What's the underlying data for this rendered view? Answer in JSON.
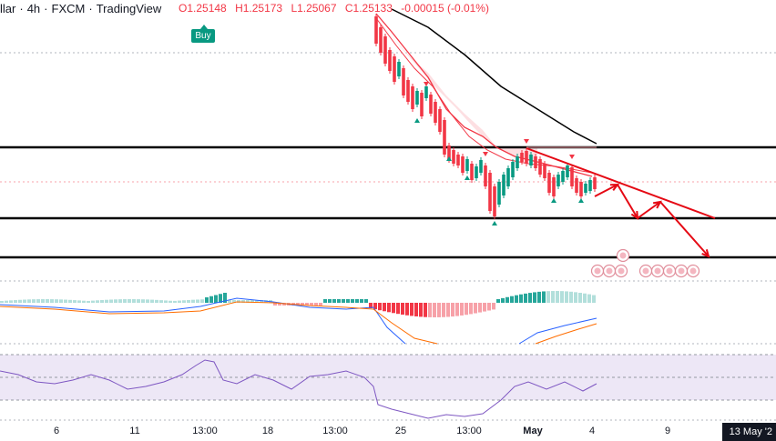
{
  "header": {
    "symbol": "llar",
    "separator1": "·",
    "interval": "4h",
    "separator2": "·",
    "exchange": "FXCM",
    "separator3": "·",
    "platform": "TradingView"
  },
  "ohlc": {
    "open": "O1.25148",
    "high": "H1.25173",
    "low": "L1.25067",
    "close": "C1.25133",
    "change": "-0.00015 (-0.01%)"
  },
  "signal_label": "Buy",
  "date_badge": "13 May '2",
  "colors": {
    "up": "#089981",
    "down": "#f23645",
    "ma_slow": "#000000",
    "ma_fast": "#f23645",
    "level": "#000000",
    "arrow": "#e50914",
    "rsi": "#7e57c2",
    "rsi_band": "#ede7f6",
    "macd_line": "#2962ff",
    "signal_line": "#ff6d00"
  },
  "chart_data": {
    "type": "candlestick",
    "x_ticks": [
      {
        "label": "6"
      },
      {
        "label": "11"
      },
      {
        "label": "13:00"
      },
      {
        "label": "18"
      },
      {
        "label": "13:00"
      },
      {
        "label": "25"
      },
      {
        "label": "13:00"
      },
      {
        "label": "May",
        "bold": true
      },
      {
        "label": "4"
      },
      {
        "label": "9"
      },
      {
        "label": "13"
      }
    ],
    "price_levels": [
      "support-resistance-1",
      "support-2",
      "support-3"
    ],
    "projection": "zigzag-down",
    "indicators": [
      "MACD",
      "RSI"
    ]
  }
}
